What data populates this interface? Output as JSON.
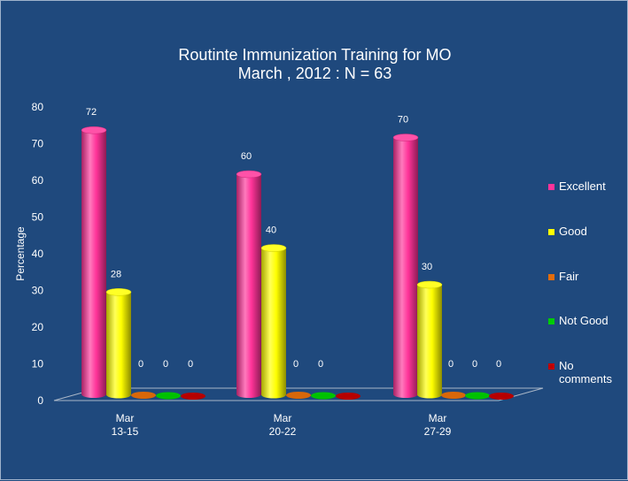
{
  "chart_data": {
    "type": "bar",
    "title": "Routinte Immunization Training for MO",
    "subtitle": "March , 2012 : N = 63",
    "ylabel": "Percentage",
    "xlabel": "",
    "ylim": [
      0,
      80
    ],
    "yticks": [
      0,
      10,
      20,
      30,
      40,
      50,
      60,
      70,
      80
    ],
    "categories": [
      [
        "Mar",
        "13-15"
      ],
      [
        "Mar",
        "20-22"
      ],
      [
        "Mar",
        "27-29"
      ]
    ],
    "series": [
      {
        "name": "Excellent",
        "color": "#ff3399",
        "values": [
          72,
          60,
          70
        ],
        "labels": [
          "72",
          "60",
          "70"
        ]
      },
      {
        "name": "Good",
        "color": "#ffff00",
        "values": [
          28,
          40,
          30
        ],
        "labels": [
          "28",
          "40",
          "30"
        ]
      },
      {
        "name": "Fair",
        "color": "#e36c0a",
        "values": [
          0,
          0,
          0
        ],
        "labels": [
          "0",
          "0",
          "0"
        ]
      },
      {
        "name": "Not Good",
        "color": "#00cc00",
        "values": [
          0,
          0,
          0
        ],
        "labels": [
          "0",
          "0",
          "0"
        ]
      },
      {
        "name": "No\ncomments",
        "color": "#c00000",
        "values": [
          0,
          0,
          0
        ],
        "labels": [
          "0",
          "",
          "0"
        ]
      }
    ],
    "legend_position": "right",
    "grid": false,
    "style": "3d-cylinder"
  }
}
